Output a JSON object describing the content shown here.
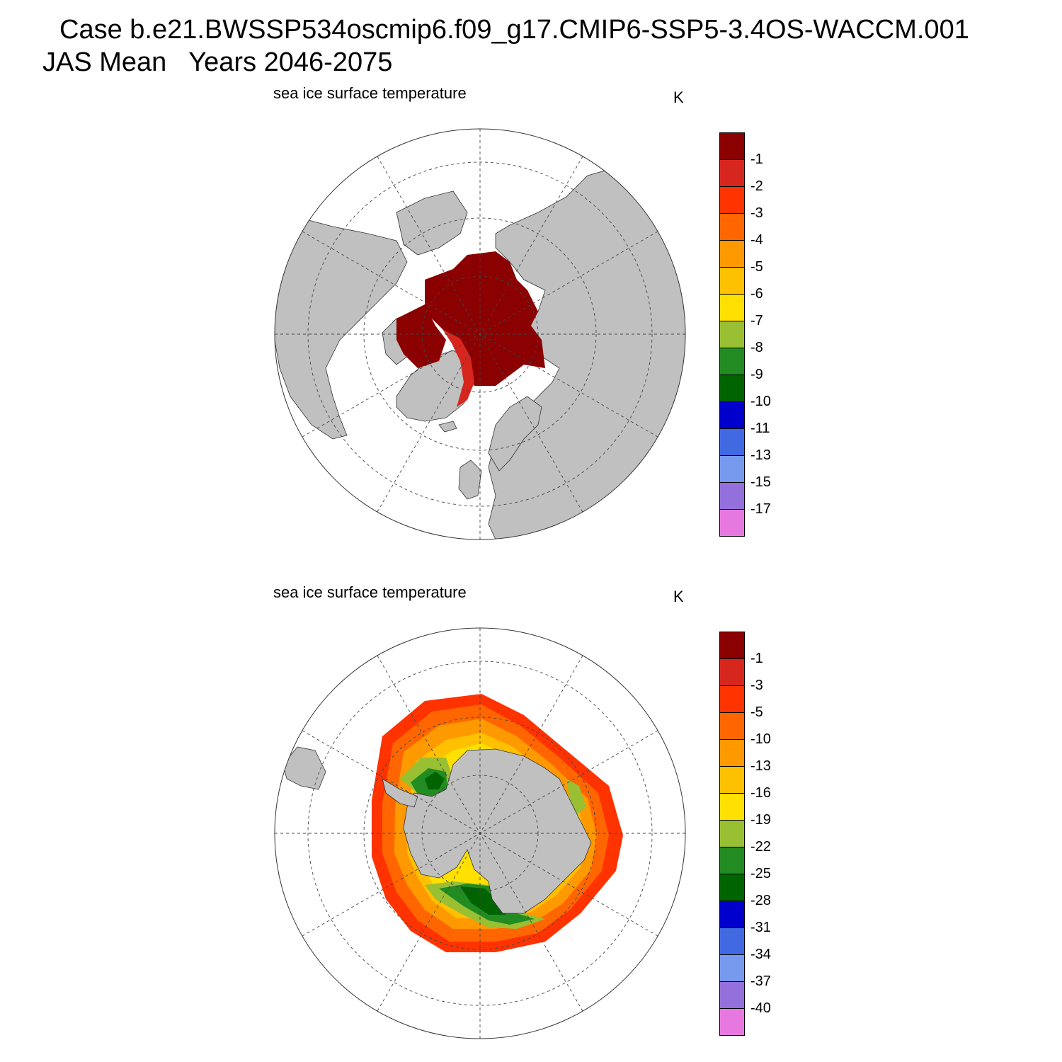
{
  "header": {
    "case_line": "Case b.e21.BWSSP534oscmip6.f09_g17.CMIP6-SSP5-3.4OS-WACCM.001",
    "period_line": "JAS Mean   Years 2046-2075"
  },
  "panels": {
    "north": {
      "field_label": "sea ice surface temperature",
      "units": "K",
      "colorbar": {
        "colors": [
          "#8b0000",
          "#d7261e",
          "#ff3300",
          "#ff6600",
          "#ff9900",
          "#ffc000",
          "#ffe000",
          "#99bf33",
          "#228b22",
          "#006400",
          "#0000cd",
          "#4169e1",
          "#7799ee",
          "#9370db",
          "#e778e0"
        ],
        "labels": [
          "-1",
          "-2",
          "-3",
          "-4",
          "-5",
          "-6",
          "-7",
          "-8",
          "-9",
          "-10",
          "-11",
          "-13",
          "-15",
          "-17"
        ]
      }
    },
    "south": {
      "field_label": "sea ice surface temperature",
      "units": "K",
      "colorbar": {
        "colors": [
          "#8b0000",
          "#d7261e",
          "#ff3300",
          "#ff6600",
          "#ff9900",
          "#ffc000",
          "#ffe000",
          "#99bf33",
          "#228b22",
          "#006400",
          "#0000cd",
          "#4169e1",
          "#7799ee",
          "#9370db",
          "#e778e0"
        ],
        "labels": [
          "-1",
          "-3",
          "-5",
          "-10",
          "-13",
          "-16",
          "-19",
          "-22",
          "-25",
          "-28",
          "-31",
          "-34",
          "-37",
          "-40"
        ]
      }
    }
  },
  "colors": {
    "land": "#c0c0c0",
    "grid": "#444444"
  }
}
